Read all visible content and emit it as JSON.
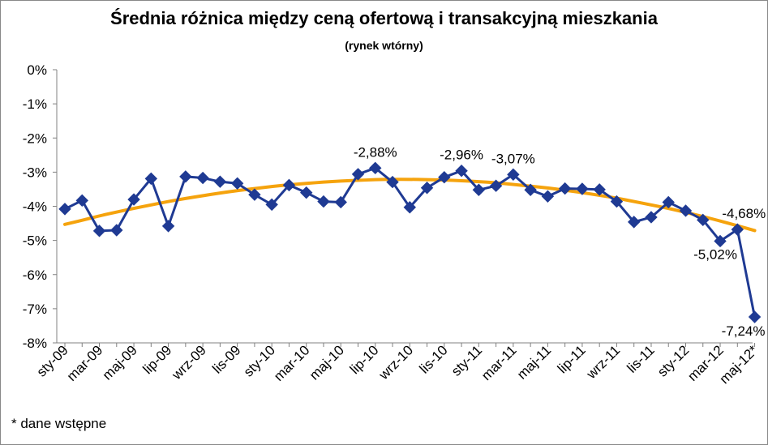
{
  "chart_data": {
    "type": "line",
    "title": "Średnia różnica między ceną ofertową i transakcyjną mieszkania",
    "subtitle": "(rynek wtórny)",
    "footnote": "* dane wstępne",
    "ylim": [
      -8,
      0
    ],
    "yticks": [
      "0%",
      "-1%",
      "-2%",
      "-3%",
      "-4%",
      "-5%",
      "-6%",
      "-7%",
      "-8%"
    ],
    "grid": false,
    "legend": "none",
    "x": [
      "sty-09",
      "lut-09",
      "mar-09",
      "kwi-09",
      "maj-09",
      "cze-09",
      "lip-09",
      "sie-09",
      "wrz-09",
      "paź-09",
      "lis-09",
      "gru-09",
      "sty-10",
      "lut-10",
      "mar-10",
      "kwi-10",
      "maj-10",
      "cze-10",
      "lip-10",
      "sie-10",
      "wrz-10",
      "paź-10",
      "lis-10",
      "gru-10",
      "sty-11",
      "lut-11",
      "mar-11",
      "kwi-11",
      "maj-11",
      "cze-11",
      "lip-11",
      "sie-11",
      "wrz-11",
      "paź-11",
      "lis-11",
      "gru-11",
      "sty-12",
      "lut-12",
      "mar-12",
      "kwi-12",
      "maj-12*"
    ],
    "xtick_labels": [
      "sty-09",
      "mar-09",
      "maj-09",
      "lip-09",
      "wrz-09",
      "lis-09",
      "sty-10",
      "mar-10",
      "maj-10",
      "lip-10",
      "wrz-10",
      "lis-10",
      "sty-11",
      "mar-11",
      "maj-11",
      "lip-11",
      "wrz-11",
      "lis-11",
      "sty-12",
      "mar-12",
      "maj-12*"
    ],
    "series": [
      {
        "color": "#1f3a93",
        "marker": "diamond",
        "values": [
          -4.08,
          -3.83,
          -4.72,
          -4.7,
          -3.8,
          -3.19,
          -4.58,
          -3.13,
          -3.17,
          -3.28,
          -3.33,
          -3.66,
          -3.95,
          -3.38,
          -3.6,
          -3.86,
          -3.88,
          -3.06,
          -2.88,
          -3.29,
          -4.03,
          -3.46,
          -3.15,
          -2.96,
          -3.52,
          -3.4,
          -3.07,
          -3.52,
          -3.71,
          -3.48,
          -3.49,
          -3.51,
          -3.86,
          -4.46,
          -4.32,
          -3.88,
          -4.13,
          -4.4,
          -5.02,
          -4.68,
          -7.24
        ]
      },
      {
        "color": "#f5a30d",
        "type": "trendline-polynomial",
        "values": [
          -4.53,
          -4.41,
          -4.28,
          -4.17,
          -4.06,
          -3.96,
          -3.86,
          -3.77,
          -3.69,
          -3.61,
          -3.54,
          -3.48,
          -3.42,
          -3.37,
          -3.33,
          -3.29,
          -3.26,
          -3.24,
          -3.22,
          -3.21,
          -3.21,
          -3.22,
          -3.23,
          -3.25,
          -3.28,
          -3.31,
          -3.36,
          -3.41,
          -3.46,
          -3.53,
          -3.6,
          -3.68,
          -3.76,
          -3.86,
          -3.96,
          -4.06,
          -4.18,
          -4.3,
          -4.43,
          -4.57,
          -4.71
        ]
      }
    ],
    "data_labels": [
      {
        "index": 18,
        "text": "-2,88%"
      },
      {
        "index": 23,
        "text": "-2,96%"
      },
      {
        "index": 26,
        "text": "-3,07%"
      },
      {
        "index": 38,
        "text": "-5,02%"
      },
      {
        "index": 39,
        "text": "-4,68%"
      },
      {
        "index": 40,
        "text": "-7,24%"
      }
    ]
  }
}
